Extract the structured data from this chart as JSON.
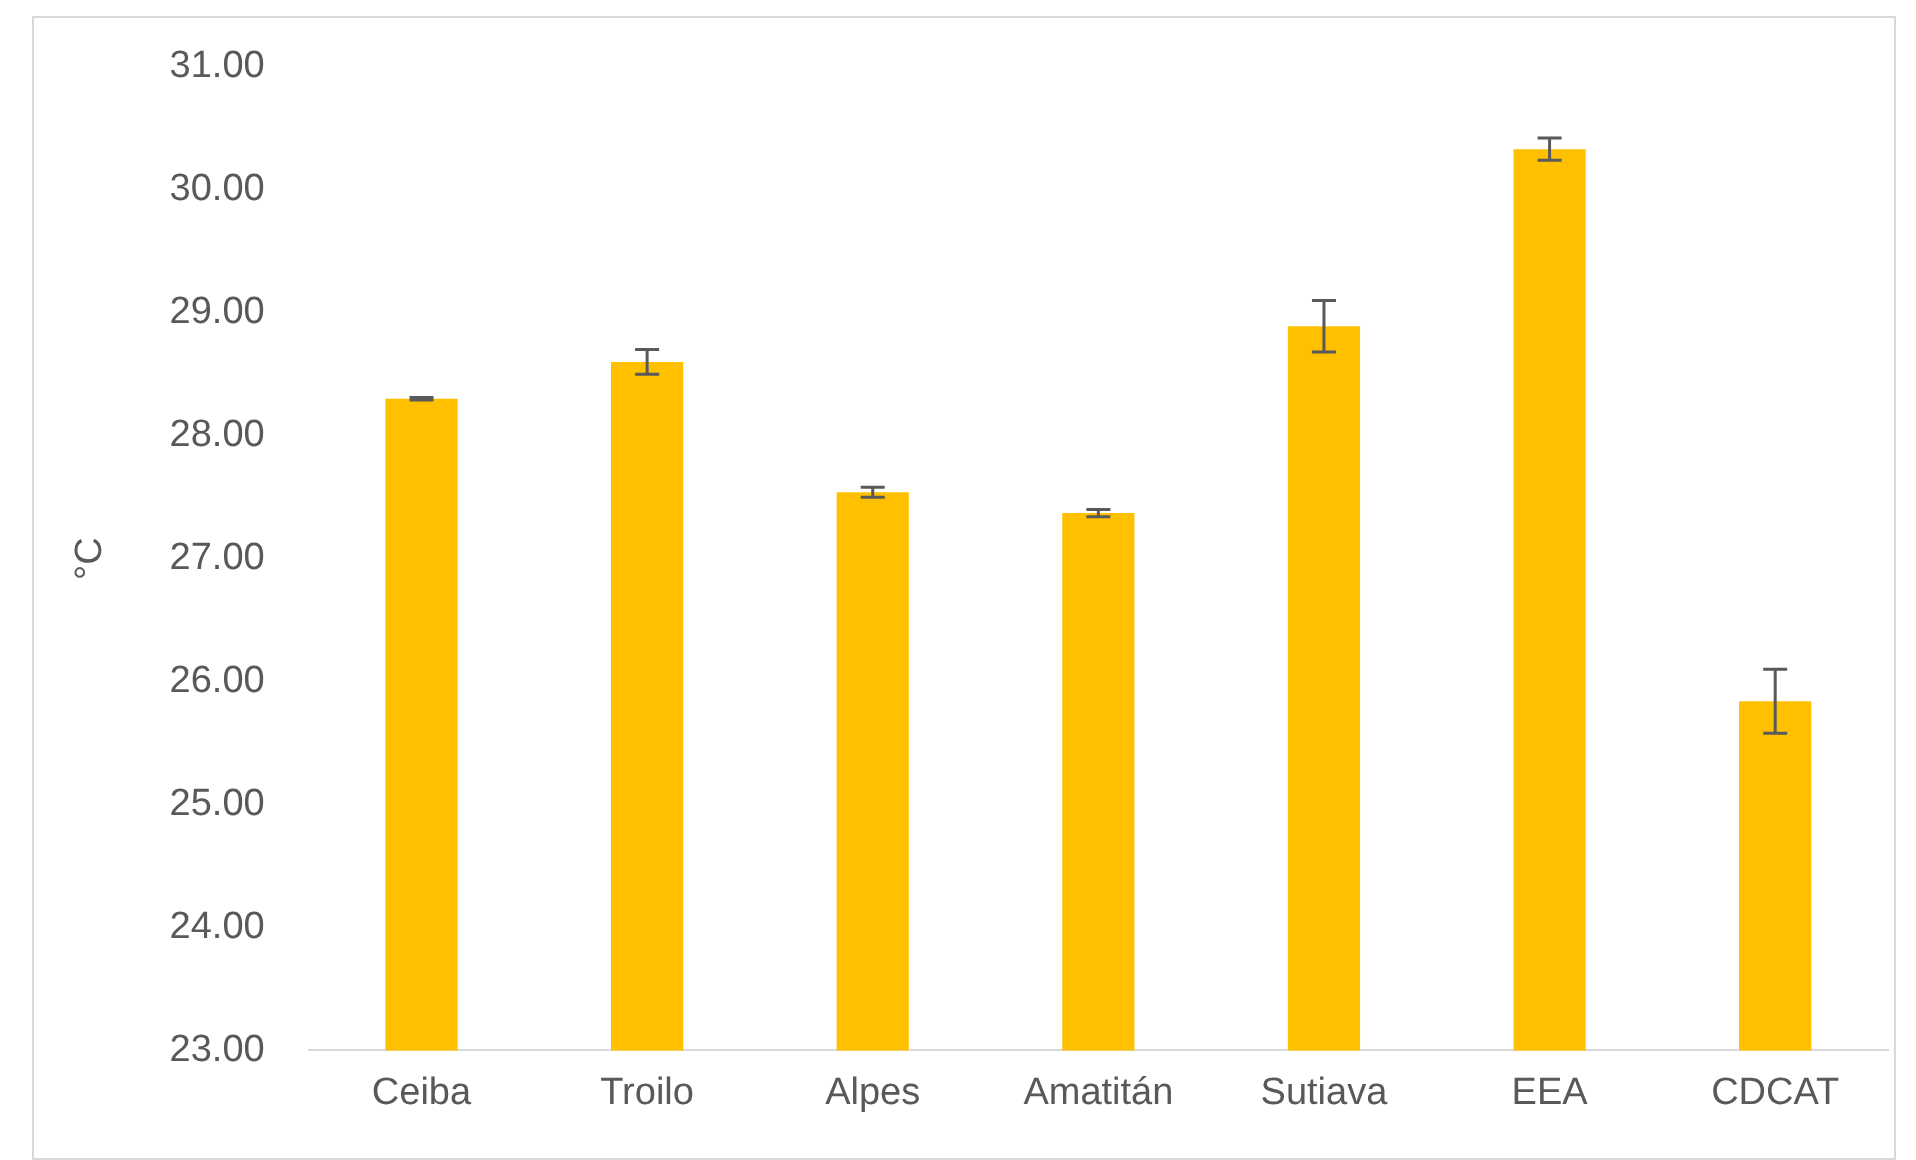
{
  "chart_data": {
    "type": "bar",
    "ylabel": "°C",
    "categories": [
      "Ceiba",
      "Troilo",
      "Alpes",
      "Amatitán",
      "Sutiava",
      "EEA",
      "CDCAT"
    ],
    "values": [
      28.3,
      28.6,
      27.54,
      27.37,
      28.89,
      30.33,
      25.84
    ],
    "errors": [
      0.01,
      0.1,
      0.04,
      0.03,
      0.21,
      0.09,
      0.26
    ],
    "color": "#ffc000",
    "ylim": [
      23,
      31
    ],
    "yticks": [
      {
        "value": 23,
        "label": "23.00"
      },
      {
        "value": 24,
        "label": "24.00"
      },
      {
        "value": 25,
        "label": "25.00"
      },
      {
        "value": 26,
        "label": "26.00"
      },
      {
        "value": 27,
        "label": "27.00"
      },
      {
        "value": 28,
        "label": "28.00"
      },
      {
        "value": 29,
        "label": "29.00"
      },
      {
        "value": 30,
        "label": "30.00"
      },
      {
        "value": 31,
        "label": "31.00"
      }
    ],
    "grid": false,
    "legend": false
  }
}
